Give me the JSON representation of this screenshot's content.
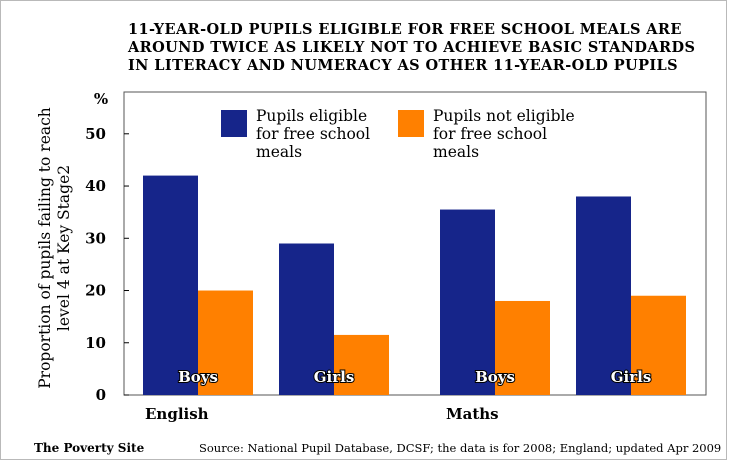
{
  "title_lines": [
    "11-YEAR-OLD PUPILS ELIGIBLE FOR FREE SCHOOL MEALS ARE",
    "AROUND TWICE AS LIKELY NOT TO ACHIEVE BASIC STANDARDS",
    "IN LITERACY AND NUMERACY AS OTHER 11-YEAR-OLD PUPILS"
  ],
  "footer": {
    "site": "The Poverty Site",
    "source": "Source: National Pupil Database, DCSF; the data is for 2008; England; updated Apr 2009"
  },
  "colors": {
    "eligible": "#16258a",
    "not_eligible": "#ff8000",
    "axis": "#000000"
  },
  "chart_data": {
    "type": "bar",
    "ylabel_lines": [
      "Proportion of pupils failing to reach",
      "level 4 at Key Stage2"
    ],
    "y_unit": "%",
    "ylim": [
      0,
      58
    ],
    "yticks": [
      "0",
      "10",
      "20",
      "30",
      "40",
      "50"
    ],
    "groups": [
      {
        "label": "English",
        "subgroups": [
          "Boys",
          "Girls"
        ]
      },
      {
        "label": "Maths",
        "subgroups": [
          "Boys",
          "Girls"
        ]
      }
    ],
    "categories": [
      "Boys",
      "Girls",
      "Boys",
      "Girls"
    ],
    "series": [
      {
        "name": "Pupils eligible for free school meals",
        "legend_lines": [
          "Pupils eligible",
          "for free school",
          "meals"
        ],
        "values": [
          42,
          29,
          35.5,
          38
        ]
      },
      {
        "name": "Pupils not eligible for free school meals",
        "legend_lines": [
          "Pupils not eligible",
          "for free school",
          "meals"
        ],
        "values": [
          20,
          11.5,
          18,
          19
        ]
      }
    ],
    "legend_position": "top",
    "grid": false
  }
}
